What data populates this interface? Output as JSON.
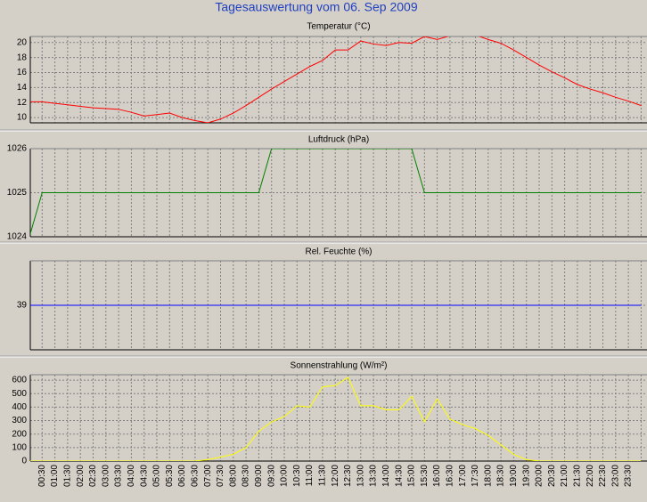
{
  "title": "Tagesauswertung vom 06. Sep 2009",
  "chart_data": [
    {
      "type": "line",
      "title": "Temperatur (°C)",
      "color": "#ff0000",
      "grid": true,
      "ylim": [
        9.3,
        20.8
      ],
      "yticks": [
        10,
        12,
        14,
        16,
        18,
        20
      ],
      "values": [
        12.1,
        12.1,
        11.9,
        11.7,
        11.5,
        11.3,
        11.2,
        11.1,
        10.7,
        10.2,
        10.4,
        10.6,
        10.0,
        9.6,
        9.3,
        9.8,
        10.6,
        11.6,
        12.7,
        13.8,
        14.8,
        15.8,
        16.8,
        17.6,
        19.0,
        19.0,
        20.2,
        19.8,
        19.6,
        20.0,
        19.9,
        20.8,
        20.4,
        20.9,
        21.0,
        21.0,
        20.4,
        19.9,
        19.0,
        18.0,
        17.0,
        16.1,
        15.3,
        14.4,
        13.8,
        13.3,
        12.7,
        12.2,
        11.6
      ]
    },
    {
      "type": "line",
      "title": "Luftdruck (hPa)",
      "color": "#008000",
      "grid": true,
      "ylim": [
        1024,
        1026
      ],
      "yticks": [
        1024,
        1025,
        1026
      ],
      "values": [
        1024,
        1025,
        1025,
        1025,
        1025,
        1025,
        1025,
        1025,
        1025,
        1025,
        1025,
        1025,
        1025,
        1025,
        1025,
        1025,
        1025,
        1025,
        1025,
        1026,
        1026,
        1026,
        1026,
        1026,
        1026,
        1026,
        1026,
        1026,
        1026,
        1026,
        1026,
        1025,
        1025,
        1025,
        1025,
        1025,
        1025,
        1025,
        1025,
        1025,
        1025,
        1025,
        1025,
        1025,
        1025,
        1025,
        1025,
        1025,
        1025
      ]
    },
    {
      "type": "line",
      "title": "Rel. Feuchte (%)",
      "color": "#0000ff",
      "grid": true,
      "ylim": [
        38,
        40
      ],
      "yticks": [
        39
      ],
      "values": [
        39,
        39,
        39,
        39,
        39,
        39,
        39,
        39,
        39,
        39,
        39,
        39,
        39,
        39,
        39,
        39,
        39,
        39,
        39,
        39,
        39,
        39,
        39,
        39,
        39,
        39,
        39,
        39,
        39,
        39,
        39,
        39,
        39,
        39,
        39,
        39,
        39,
        39,
        39,
        39,
        39,
        39,
        39,
        39,
        39,
        39,
        39,
        39,
        39
      ]
    },
    {
      "type": "line",
      "title": "Sonnenstrahlung (W/m²)",
      "color": "#ffff00",
      "grid": true,
      "ylim": [
        0,
        640
      ],
      "yticks": [
        0,
        100,
        200,
        300,
        400,
        500,
        600
      ],
      "categories": [
        null,
        "00:30",
        "01:00",
        "01:30",
        "02:00",
        "02:30",
        "03:00",
        "03:30",
        "04:00",
        "04:30",
        "05:00",
        "05:30",
        "06:00",
        "06:30",
        "07:00",
        "07:30",
        "08:00",
        "08:30",
        "09:00",
        "09:30",
        "10:00",
        "10:30",
        "11:00",
        "11:30",
        "12:00",
        "12:30",
        "13:00",
        "13:30",
        "14:00",
        "14:30",
        "15:00",
        "15:30",
        "16:00",
        "16:30",
        "17:00",
        "17:30",
        "18:00",
        "18:30",
        "19:00",
        "19:30",
        "20:00",
        "20:30",
        "21:00",
        "21:30",
        "22:00",
        "22:30",
        "23:00",
        "23:30",
        null
      ],
      "values": [
        0,
        0,
        0,
        0,
        0,
        0,
        0,
        0,
        0,
        0,
        0,
        0,
        0,
        0,
        10,
        30,
        50,
        100,
        220,
        290,
        330,
        410,
        400,
        550,
        560,
        620,
        410,
        410,
        380,
        380,
        480,
        290,
        460,
        310,
        270,
        240,
        190,
        120,
        50,
        10,
        0,
        0,
        0,
        0,
        0,
        0,
        0,
        0,
        0
      ]
    }
  ]
}
